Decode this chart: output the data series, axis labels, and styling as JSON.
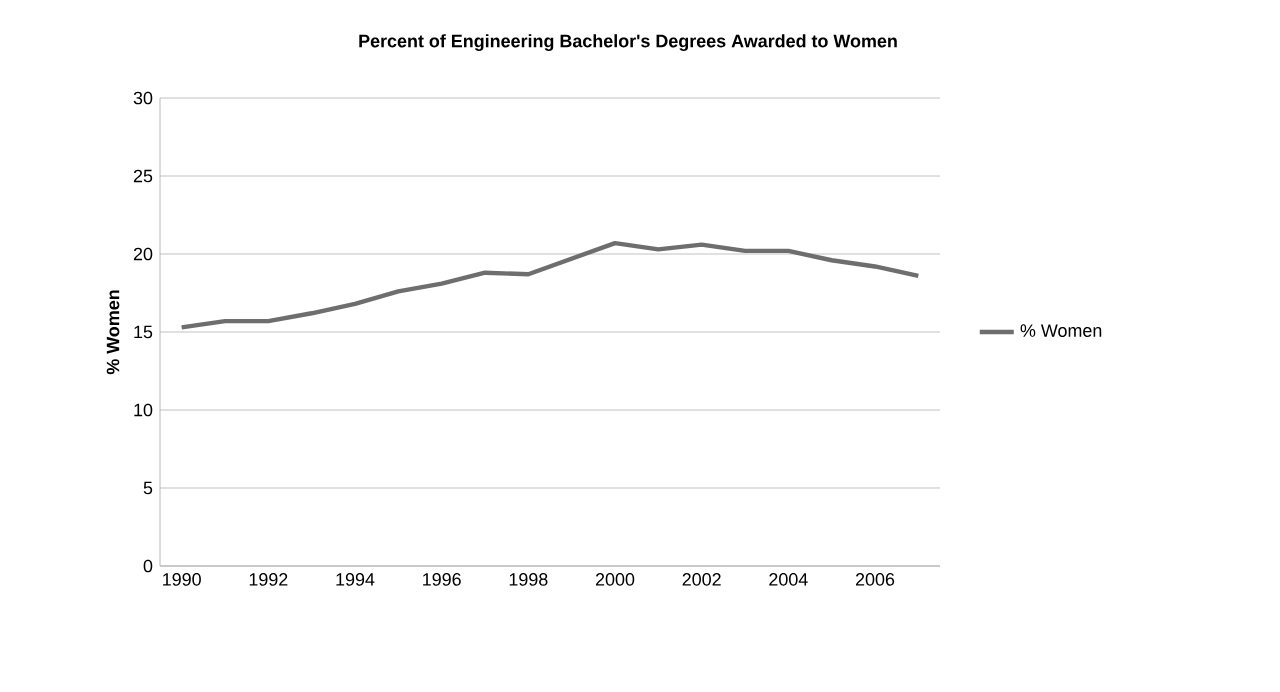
{
  "chart_data": {
    "type": "line",
    "title": "Percent of Engineering Bachelor's Degrees Awarded to Women",
    "ylabel": "% Women",
    "x": [
      1990,
      1991,
      1992,
      1993,
      1994,
      1995,
      1996,
      1997,
      1998,
      1999,
      2000,
      2001,
      2002,
      2003,
      2004,
      2005,
      2006,
      2007
    ],
    "series": [
      {
        "name": "% Women",
        "color": "#6e6e6e",
        "values": [
          15.3,
          15.7,
          15.7,
          16.2,
          16.8,
          17.6,
          18.1,
          18.8,
          18.7,
          19.7,
          20.7,
          20.3,
          20.6,
          20.2,
          20.2,
          19.6,
          19.2,
          18.6
        ]
      }
    ],
    "xlim": [
      1989.5,
      2007.5
    ],
    "xticks": [
      1990,
      1992,
      1994,
      1996,
      1998,
      2000,
      2002,
      2004,
      2006
    ],
    "ylim": [
      0,
      30
    ],
    "yticks": [
      0,
      5,
      10,
      15,
      20,
      25,
      30
    ],
    "grid": "y",
    "legend": "right",
    "marker": "none",
    "line_style": "solid"
  }
}
